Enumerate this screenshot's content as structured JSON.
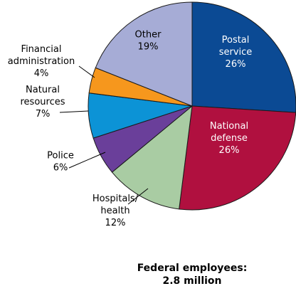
{
  "chart_data": {
    "type": "pie",
    "slices": [
      {
        "label_lines": [
          "Postal",
          "service",
          "26%"
        ],
        "value": 26,
        "color": "#0b4a94",
        "text_color": "#ffffff"
      },
      {
        "label_lines": [
          "National",
          "defense",
          "26%"
        ],
        "value": 26,
        "color": "#b0103f",
        "text_color": "#ffffff"
      },
      {
        "label_lines": [
          "Hospitals/",
          "health",
          "12%"
        ],
        "value": 12,
        "color": "#a9cca3",
        "text_color": "#000000"
      },
      {
        "label_lines": [
          "Police",
          "6%"
        ],
        "value": 6,
        "color": "#6a3f9a",
        "text_color": "#000000"
      },
      {
        "label_lines": [
          "Natural",
          "resources",
          "7%"
        ],
        "value": 7,
        "color": "#0c93d6",
        "text_color": "#000000"
      },
      {
        "label_lines": [
          "Financial",
          "administration",
          "4%"
        ],
        "value": 4,
        "color": "#f6971d",
        "text_color": "#000000"
      },
      {
        "label_lines": [
          "Other",
          "19%"
        ],
        "value": 19,
        "color": "#a6acd6",
        "text_color": "#000000"
      }
    ]
  },
  "caption": {
    "line1": "Federal employees:",
    "line2": "2.8 million"
  }
}
